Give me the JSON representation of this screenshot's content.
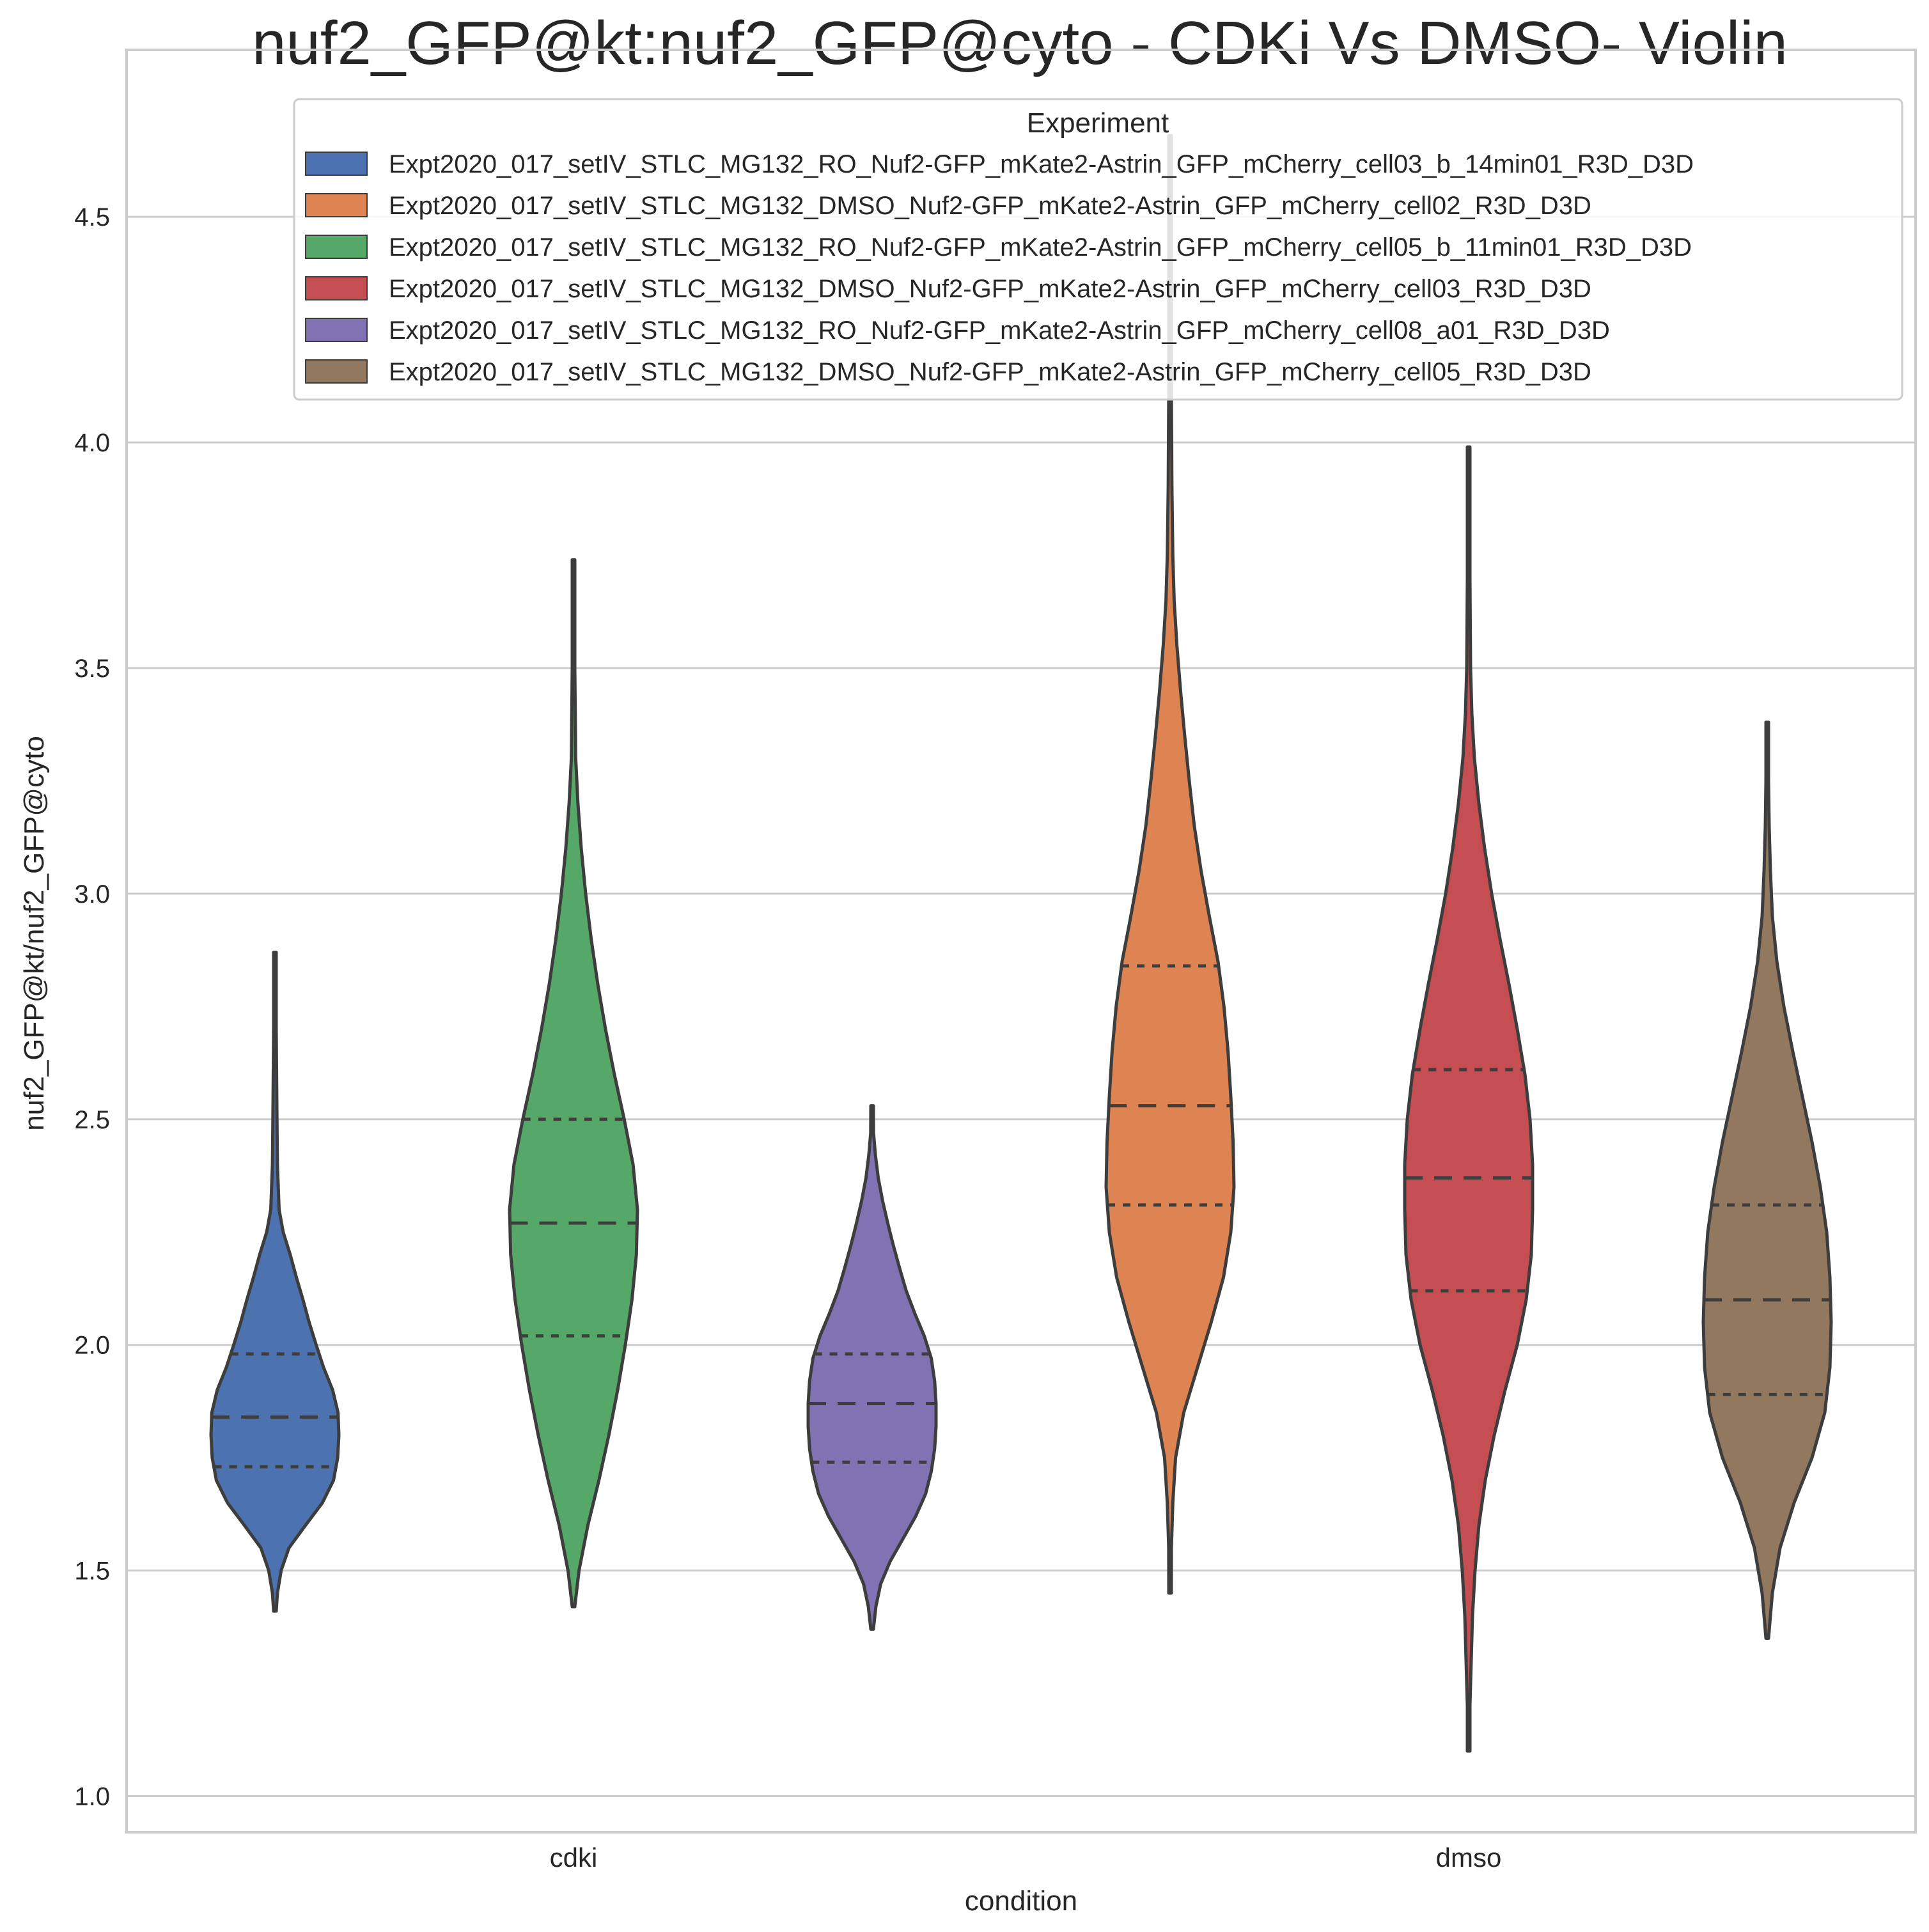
{
  "chart_data": {
    "type": "violin",
    "title": "nuf2_GFP@kt:nuf2_GFP@cyto - CDKi Vs DMSO- Violin",
    "xlabel": "condition",
    "ylabel": "nuf2_GFP@kt/nuf2_GFP@cyto",
    "categories": [
      "cdki",
      "dmso"
    ],
    "ylim": [
      0.92,
      4.87
    ],
    "yticks": [
      "1.0",
      "1.5",
      "2.0",
      "2.5",
      "3.0",
      "3.5",
      "4.0",
      "4.5"
    ],
    "grid": true,
    "legend": {
      "title": "Experiment",
      "placement": "top-right"
    },
    "inner": "quartile",
    "series": [
      {
        "name": "Expt2020_017_setIV_STLC_MG132_RO_Nuf2-GFP_mKate2-Astrin_GFP_mCherry_cell03_b_14min01_R3D_D3D",
        "category": "cdki",
        "color": "#4c72b0",
        "min": 1.41,
        "max": 2.87,
        "q1": 1.73,
        "median": 1.84,
        "q3": 1.98,
        "density": [
          [
            1.41,
            0.0
          ],
          [
            1.45,
            0.006
          ],
          [
            1.5,
            0.015
          ],
          [
            1.55,
            0.034
          ],
          [
            1.6,
            0.074
          ],
          [
            1.65,
            0.115
          ],
          [
            1.7,
            0.142
          ],
          [
            1.75,
            0.152
          ],
          [
            1.8,
            0.155
          ],
          [
            1.85,
            0.153
          ],
          [
            1.9,
            0.14
          ],
          [
            1.95,
            0.118
          ],
          [
            2.0,
            0.1
          ],
          [
            2.05,
            0.083
          ],
          [
            2.1,
            0.068
          ],
          [
            2.15,
            0.052
          ],
          [
            2.2,
            0.037
          ],
          [
            2.25,
            0.02
          ],
          [
            2.3,
            0.01
          ],
          [
            2.4,
            0.006
          ],
          [
            2.5,
            0.005
          ],
          [
            2.6,
            0.004
          ],
          [
            2.7,
            0.003
          ],
          [
            2.8,
            0.002
          ],
          [
            2.87,
            0.0
          ]
        ]
      },
      {
        "name": "Expt2020_017_setIV_STLC_MG132_DMSO_Nuf2-GFP_mKate2-Astrin_GFP_mCherry_cell02_R3D_D3D",
        "category": "dmso",
        "color": "#dd8452",
        "min": 1.45,
        "max": 4.68,
        "q1": 2.31,
        "median": 2.53,
        "q3": 2.84,
        "density": [
          [
            1.45,
            0.0
          ],
          [
            1.55,
            0.003
          ],
          [
            1.65,
            0.006
          ],
          [
            1.75,
            0.012
          ],
          [
            1.85,
            0.03
          ],
          [
            1.95,
            0.06
          ],
          [
            2.05,
            0.09
          ],
          [
            2.15,
            0.117
          ],
          [
            2.25,
            0.133
          ],
          [
            2.35,
            0.14
          ],
          [
            2.45,
            0.138
          ],
          [
            2.55,
            0.133
          ],
          [
            2.65,
            0.127
          ],
          [
            2.75,
            0.118
          ],
          [
            2.85,
            0.105
          ],
          [
            2.95,
            0.086
          ],
          [
            3.05,
            0.068
          ],
          [
            3.15,
            0.053
          ],
          [
            3.25,
            0.042
          ],
          [
            3.35,
            0.032
          ],
          [
            3.45,
            0.023
          ],
          [
            3.55,
            0.015
          ],
          [
            3.65,
            0.009
          ],
          [
            3.75,
            0.006
          ],
          [
            3.9,
            0.004
          ],
          [
            4.1,
            0.003
          ],
          [
            4.3,
            0.002
          ],
          [
            4.5,
            0.001
          ],
          [
            4.68,
            0.0
          ]
        ]
      },
      {
        "name": "Expt2020_017_setIV_STLC_MG132_RO_Nuf2-GFP_mKate2-Astrin_GFP_mCherry_cell05_b_11min01_R3D_D3D",
        "category": "cdki",
        "color": "#55a868",
        "min": 1.42,
        "max": 3.74,
        "q1": 2.02,
        "median": 2.27,
        "q3": 2.5,
        "density": [
          [
            1.42,
            0.0
          ],
          [
            1.5,
            0.005
          ],
          [
            1.6,
            0.013
          ],
          [
            1.7,
            0.023
          ],
          [
            1.8,
            0.032
          ],
          [
            1.9,
            0.04
          ],
          [
            2.0,
            0.047
          ],
          [
            2.1,
            0.053
          ],
          [
            2.2,
            0.057
          ],
          [
            2.3,
            0.058
          ],
          [
            2.4,
            0.054
          ],
          [
            2.5,
            0.046
          ],
          [
            2.6,
            0.037
          ],
          [
            2.7,
            0.029
          ],
          [
            2.8,
            0.022
          ],
          [
            2.9,
            0.016
          ],
          [
            3.0,
            0.011
          ],
          [
            3.1,
            0.007
          ],
          [
            3.2,
            0.004
          ],
          [
            3.3,
            0.002
          ],
          [
            3.5,
            0.001
          ],
          [
            3.74,
            0.0
          ]
        ]
      },
      {
        "name": "Expt2020_017_setIV_STLC_MG132_DMSO_Nuf2-GFP_mKate2-Astrin_GFP_mCherry_cell03_R3D_D3D",
        "category": "dmso",
        "color": "#c44e52",
        "min": 1.1,
        "max": 3.99,
        "q1": 2.12,
        "median": 2.37,
        "q3": 2.61,
        "density": [
          [
            1.1,
            0.0
          ],
          [
            1.2,
            0.002
          ],
          [
            1.3,
            0.004
          ],
          [
            1.4,
            0.006
          ],
          [
            1.5,
            0.01
          ],
          [
            1.6,
            0.016
          ],
          [
            1.7,
            0.026
          ],
          [
            1.8,
            0.04
          ],
          [
            1.9,
            0.057
          ],
          [
            2.0,
            0.076
          ],
          [
            2.1,
            0.09
          ],
          [
            2.2,
            0.098
          ],
          [
            2.3,
            0.1
          ],
          [
            2.4,
            0.1
          ],
          [
            2.5,
            0.096
          ],
          [
            2.6,
            0.088
          ],
          [
            2.7,
            0.076
          ],
          [
            2.8,
            0.063
          ],
          [
            2.9,
            0.049
          ],
          [
            3.0,
            0.036
          ],
          [
            3.1,
            0.025
          ],
          [
            3.2,
            0.016
          ],
          [
            3.3,
            0.009
          ],
          [
            3.4,
            0.005
          ],
          [
            3.5,
            0.003
          ],
          [
            3.7,
            0.002
          ],
          [
            3.85,
            0.001
          ],
          [
            3.99,
            0.0
          ]
        ]
      },
      {
        "name": "Expt2020_017_setIV_STLC_MG132_RO_Nuf2-GFP_mKate2-Astrin_GFP_mCherry_cell08_a01_R3D_D3D",
        "category": "cdki",
        "color": "#8172b3",
        "min": 1.37,
        "max": 2.53,
        "q1": 1.74,
        "median": 1.87,
        "q3": 1.98,
        "density": [
          [
            1.37,
            0.0
          ],
          [
            1.42,
            0.008
          ],
          [
            1.47,
            0.018
          ],
          [
            1.52,
            0.038
          ],
          [
            1.57,
            0.065
          ],
          [
            1.62,
            0.092
          ],
          [
            1.67,
            0.113
          ],
          [
            1.72,
            0.125
          ],
          [
            1.77,
            0.132
          ],
          [
            1.82,
            0.135
          ],
          [
            1.87,
            0.135
          ],
          [
            1.92,
            0.132
          ],
          [
            1.97,
            0.125
          ],
          [
            2.02,
            0.11
          ],
          [
            2.07,
            0.09
          ],
          [
            2.12,
            0.072
          ],
          [
            2.17,
            0.058
          ],
          [
            2.22,
            0.045
          ],
          [
            2.27,
            0.033
          ],
          [
            2.32,
            0.022
          ],
          [
            2.37,
            0.013
          ],
          [
            2.42,
            0.007
          ],
          [
            2.47,
            0.003
          ],
          [
            2.53,
            0.0
          ]
        ]
      },
      {
        "name": "Expt2020_017_setIV_STLC_MG132_DMSO_Nuf2-GFP_mKate2-Astrin_GFP_mCherry_cell05_R3D_D3D",
        "category": "dmso",
        "color": "#937860",
        "min": 1.35,
        "max": 3.38,
        "q1": 1.89,
        "median": 2.1,
        "q3": 2.31,
        "density": [
          [
            1.35,
            0.0
          ],
          [
            1.45,
            0.008
          ],
          [
            1.55,
            0.02
          ],
          [
            1.65,
            0.042
          ],
          [
            1.75,
            0.07
          ],
          [
            1.85,
            0.09
          ],
          [
            1.95,
            0.098
          ],
          [
            2.05,
            0.1
          ],
          [
            2.15,
            0.098
          ],
          [
            2.25,
            0.093
          ],
          [
            2.35,
            0.083
          ],
          [
            2.45,
            0.07
          ],
          [
            2.55,
            0.055
          ],
          [
            2.65,
            0.04
          ],
          [
            2.75,
            0.026
          ],
          [
            2.85,
            0.015
          ],
          [
            2.95,
            0.008
          ],
          [
            3.05,
            0.005
          ],
          [
            3.15,
            0.003
          ],
          [
            3.25,
            0.002
          ],
          [
            3.38,
            0.0
          ]
        ]
      }
    ]
  }
}
